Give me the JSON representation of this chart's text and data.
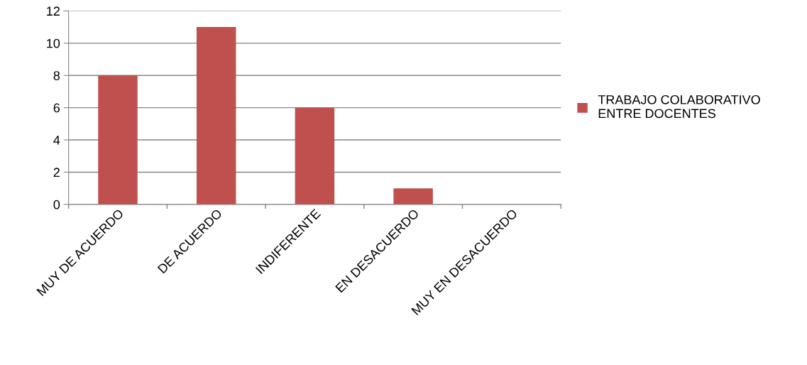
{
  "chart_data": {
    "type": "bar",
    "categories": [
      "MUY DE ACUERDO",
      "DE ACUERDO",
      "INDIFERENTE",
      "EN DESACUERDO",
      "MUY EN DESACUERDO"
    ],
    "series": [
      {
        "name": "TRABAJO COLABORATIVO\nENTRE DOCENTES",
        "color": "#c0504d",
        "values": [
          8,
          11,
          6,
          1,
          0
        ]
      }
    ],
    "ylim": [
      0,
      12
    ],
    "yticks": [
      0,
      2,
      4,
      6,
      8,
      10,
      12
    ],
    "grid": "y",
    "legend": "right"
  }
}
